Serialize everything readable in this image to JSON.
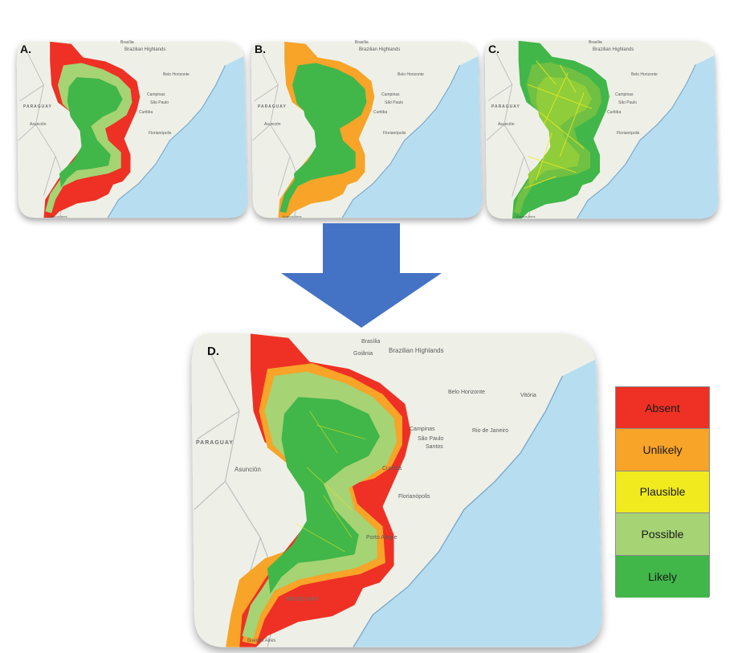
{
  "panels": [
    {
      "letter": "A.",
      "labels": [
        "Brazilian Highlands",
        "Brasília",
        "Belo Horizonte",
        "Campinas",
        "São Paulo",
        "Curitiba",
        "Florianópolis",
        "PARAGUAY",
        "Asunción",
        "Buenos Aires"
      ]
    },
    {
      "letter": "B.",
      "labels": [
        "Brazilian Highlands",
        "Brasília",
        "Belo Horizonte",
        "Campinas",
        "São Paulo",
        "Curitiba",
        "Florianópolis",
        "PARAGUAY",
        "Asunción",
        "Buenos Aires"
      ]
    },
    {
      "letter": "C.",
      "labels": [
        "Brazilian Highlands",
        "Brasília",
        "Belo Horizonte",
        "Campinas",
        "São Paulo",
        "Curitiba",
        "Florianópolis",
        "PARAGUAY",
        "Asunción",
        "Buenos Aires"
      ]
    },
    {
      "letter": "D.",
      "labels": [
        "Brasília",
        "Goiânia",
        "Brazilian Highlands",
        "Belo Horizonte",
        "Vitória",
        "Campinas",
        "São Paulo",
        "Rio de Janeiro",
        "Santos",
        "Curitiba",
        "Florianópolis",
        "PARAGUAY",
        "Asunción",
        "Porto Alegre",
        "URUGUAY",
        "Buenos Aires"
      ]
    }
  ],
  "legend": {
    "items": [
      {
        "label": "Absent",
        "color": "#ee3124"
      },
      {
        "label": "Unlikely",
        "color": "#f7a428"
      },
      {
        "label": "Plausible",
        "color": "#f0ea1e"
      },
      {
        "label": "Possible",
        "color": "#a6d374"
      },
      {
        "label": "Likely",
        "color": "#41b649"
      }
    ]
  },
  "colors": {
    "land": "#eef0e8",
    "ocean": "#b7def0",
    "border": "#bfbfbf",
    "arrow": "#4472c4"
  }
}
